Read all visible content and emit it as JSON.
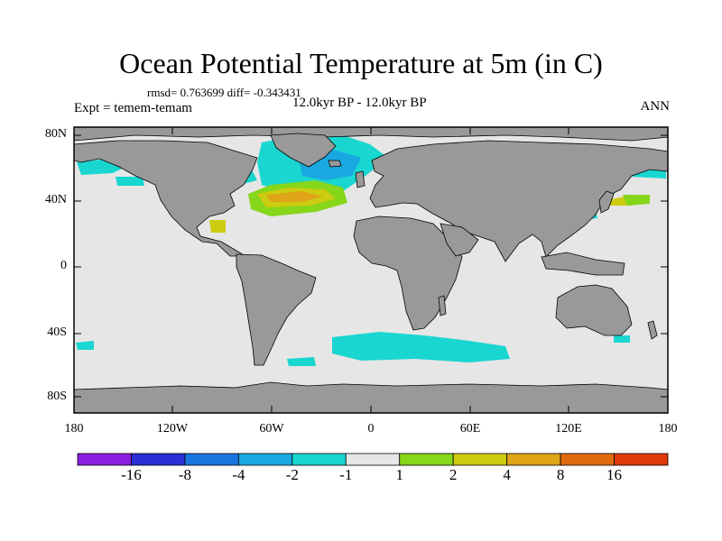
{
  "title": "Ocean Potential Temperature at 5m (in C)",
  "stats_line": "rmsd= 0.763699 diff= -0.343431",
  "experiment": "Expt = temem-temam",
  "period": "12.0kyr BP - 12.0kyr BP",
  "season": "ANN",
  "lat_labels": [
    "80N",
    "40N",
    "0",
    "40S",
    "80S"
  ],
  "lon_labels": [
    "180",
    "120W",
    "60W",
    "0",
    "60E",
    "120E",
    "180"
  ],
  "colorbar": {
    "colors": [
      "#8a1ee0",
      "#2a2fd6",
      "#1a74e0",
      "#19a8e0",
      "#19d6d0",
      "#e6e6e6",
      "#86d61a",
      "#cccc10",
      "#e0a418",
      "#e06a10",
      "#e03a08"
    ],
    "labels": [
      "-16",
      "-8",
      "-4",
      "-2",
      "-1",
      "1",
      "2",
      "4",
      "8",
      "16"
    ]
  }
}
